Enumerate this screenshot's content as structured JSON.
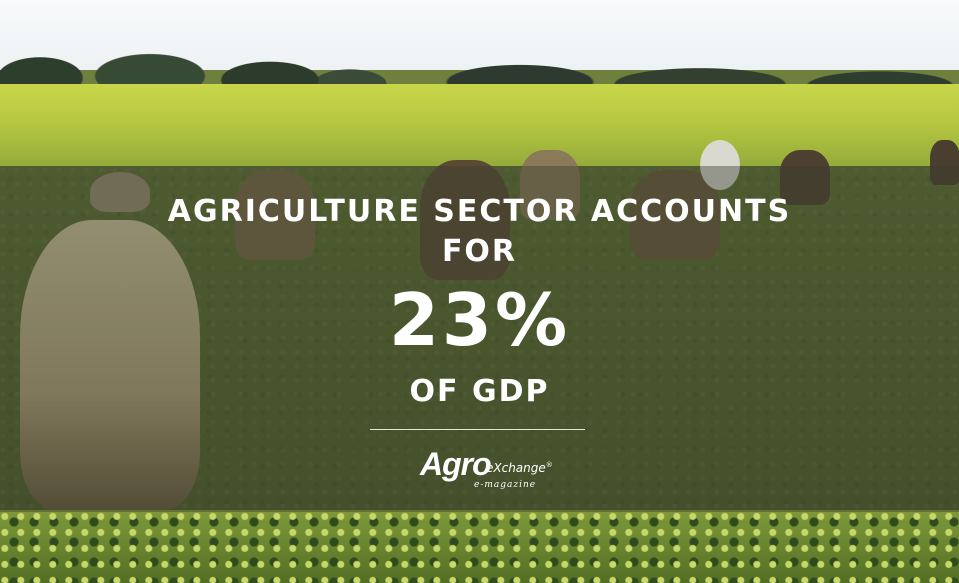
{
  "headline": {
    "line1": "AGRICULTURE SECTOR ACCOUNTS",
    "line2": "FOR"
  },
  "stat": {
    "value": "23%",
    "suffix": "OF GDP"
  },
  "logo": {
    "brand": "Agro",
    "product": "eXchange",
    "registered": "®",
    "tagline": "e-magazine"
  },
  "colors": {
    "text": "#ffffff",
    "overlay": "rgba(55,60,45,0.42)"
  }
}
